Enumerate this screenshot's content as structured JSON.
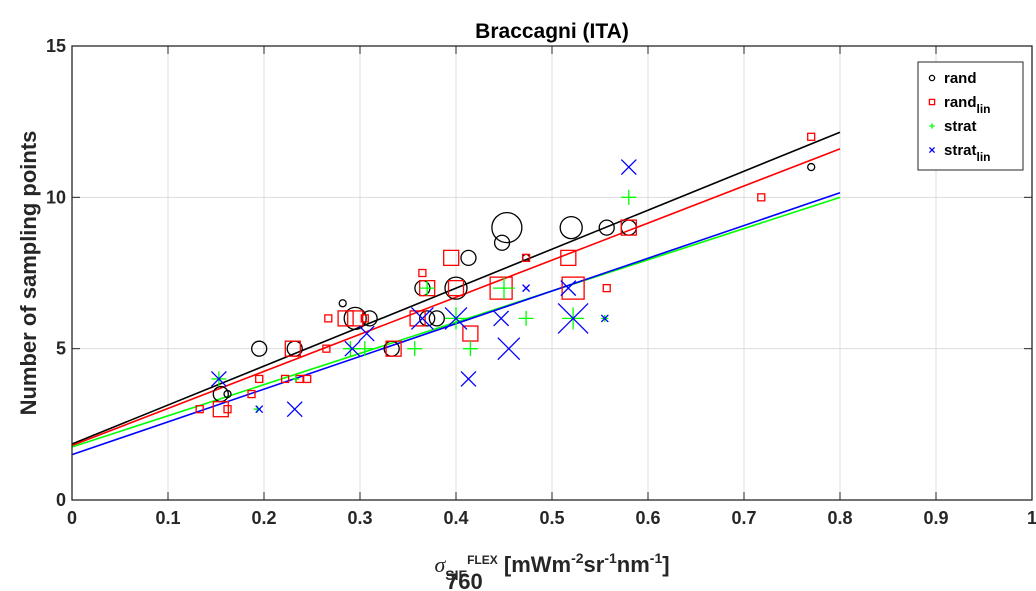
{
  "chart_data": {
    "type": "scatter",
    "title": "Braccagni (ITA)",
    "ylabel": "Number of sampling points",
    "xlabel": {
      "sigma": "σ",
      "sub_base": "SIF",
      "sup_flex": "FLEX",
      "sub_760": "760",
      "units_prefix": " [mWm",
      "exp1": "-2",
      "units_sr": "sr",
      "exp2": "-1",
      "units_nm": "nm",
      "exp3": "-1",
      "units_suffix": "]"
    },
    "xlim": [
      0,
      1
    ],
    "ylim": [
      0,
      15
    ],
    "xticks": [
      0,
      0.1,
      0.2,
      0.3,
      0.4,
      0.5,
      0.6,
      0.7,
      0.8,
      0.9,
      1
    ],
    "xtick_labels": [
      "0",
      "0.1",
      "0.2",
      "0.3",
      "0.4",
      "0.5",
      "0.6",
      "0.7",
      "0.8",
      "0.9",
      "1"
    ],
    "yticks": [
      0,
      5,
      10,
      15
    ],
    "ytick_labels": [
      "0",
      "5",
      "10",
      "15"
    ],
    "grid": true,
    "legend_position": "top-right",
    "series": [
      {
        "name": "rand",
        "name_sub": "",
        "color": "#000000",
        "marker": "circle",
        "points": [
          {
            "x": 0.155,
            "y": 3.5,
            "s": 2
          },
          {
            "x": 0.162,
            "y": 3.5,
            "s": 1
          },
          {
            "x": 0.195,
            "y": 5,
            "s": 2
          },
          {
            "x": 0.232,
            "y": 5,
            "s": 2
          },
          {
            "x": 0.282,
            "y": 6.5,
            "s": 1
          },
          {
            "x": 0.295,
            "y": 6,
            "s": 3
          },
          {
            "x": 0.31,
            "y": 6,
            "s": 2
          },
          {
            "x": 0.333,
            "y": 5,
            "s": 2
          },
          {
            "x": 0.365,
            "y": 7,
            "s": 2
          },
          {
            "x": 0.37,
            "y": 6,
            "s": 2
          },
          {
            "x": 0.38,
            "y": 6,
            "s": 2
          },
          {
            "x": 0.4,
            "y": 7,
            "s": 3
          },
          {
            "x": 0.413,
            "y": 8,
            "s": 2
          },
          {
            "x": 0.448,
            "y": 8.5,
            "s": 2
          },
          {
            "x": 0.453,
            "y": 9,
            "s": 4
          },
          {
            "x": 0.473,
            "y": 8,
            "s": 1
          },
          {
            "x": 0.52,
            "y": 9,
            "s": 3
          },
          {
            "x": 0.557,
            "y": 9,
            "s": 2
          },
          {
            "x": 0.58,
            "y": 9,
            "s": 2
          },
          {
            "x": 0.77,
            "y": 11,
            "s": 1
          }
        ],
        "fit": {
          "x": [
            0,
            0.8
          ],
          "y": [
            1.85,
            12.15
          ]
        }
      },
      {
        "name": "rand",
        "name_sub": "lin",
        "color": "#ff0000",
        "marker": "square",
        "points": [
          {
            "x": 0.133,
            "y": 3,
            "s": 1
          },
          {
            "x": 0.155,
            "y": 3,
            "s": 2
          },
          {
            "x": 0.162,
            "y": 3,
            "s": 1
          },
          {
            "x": 0.187,
            "y": 3.5,
            "s": 1
          },
          {
            "x": 0.195,
            "y": 4,
            "s": 1
          },
          {
            "x": 0.222,
            "y": 4,
            "s": 1
          },
          {
            "x": 0.23,
            "y": 5,
            "s": 2
          },
          {
            "x": 0.237,
            "y": 4,
            "s": 1
          },
          {
            "x": 0.245,
            "y": 4,
            "s": 1
          },
          {
            "x": 0.265,
            "y": 5,
            "s": 1
          },
          {
            "x": 0.267,
            "y": 6,
            "s": 1
          },
          {
            "x": 0.285,
            "y": 6,
            "s": 2
          },
          {
            "x": 0.295,
            "y": 6,
            "s": 2
          },
          {
            "x": 0.305,
            "y": 6,
            "s": 1
          },
          {
            "x": 0.335,
            "y": 5,
            "s": 2
          },
          {
            "x": 0.36,
            "y": 6,
            "s": 2
          },
          {
            "x": 0.365,
            "y": 7.5,
            "s": 1
          },
          {
            "x": 0.37,
            "y": 7,
            "s": 2
          },
          {
            "x": 0.395,
            "y": 8,
            "s": 2
          },
          {
            "x": 0.4,
            "y": 7,
            "s": 2
          },
          {
            "x": 0.415,
            "y": 5.5,
            "s": 2
          },
          {
            "x": 0.447,
            "y": 7,
            "s": 3
          },
          {
            "x": 0.473,
            "y": 8,
            "s": 1
          },
          {
            "x": 0.517,
            "y": 8,
            "s": 2
          },
          {
            "x": 0.522,
            "y": 7,
            "s": 3
          },
          {
            "x": 0.557,
            "y": 7,
            "s": 1
          },
          {
            "x": 0.58,
            "y": 9,
            "s": 2
          },
          {
            "x": 0.718,
            "y": 10,
            "s": 1
          },
          {
            "x": 0.77,
            "y": 12,
            "s": 1
          }
        ],
        "fit": {
          "x": [
            0,
            0.8
          ],
          "y": [
            1.8,
            11.6
          ]
        }
      },
      {
        "name": "strat",
        "name_sub": "",
        "color": "#00ff00",
        "marker": "plus",
        "points": [
          {
            "x": 0.153,
            "y": 4,
            "s": 2
          },
          {
            "x": 0.193,
            "y": 3,
            "s": 1
          },
          {
            "x": 0.233,
            "y": 4,
            "s": 1
          },
          {
            "x": 0.29,
            "y": 5,
            "s": 2
          },
          {
            "x": 0.305,
            "y": 5,
            "s": 2
          },
          {
            "x": 0.357,
            "y": 5,
            "s": 2
          },
          {
            "x": 0.37,
            "y": 7,
            "s": 2
          },
          {
            "x": 0.4,
            "y": 6,
            "s": 3
          },
          {
            "x": 0.415,
            "y": 5,
            "s": 2
          },
          {
            "x": 0.45,
            "y": 7,
            "s": 3
          },
          {
            "x": 0.473,
            "y": 6,
            "s": 2
          },
          {
            "x": 0.522,
            "y": 6,
            "s": 3
          },
          {
            "x": 0.555,
            "y": 6,
            "s": 1
          },
          {
            "x": 0.58,
            "y": 10,
            "s": 2
          }
        ],
        "fit": {
          "x": [
            0,
            0.8
          ],
          "y": [
            1.75,
            10.0
          ]
        }
      },
      {
        "name": "strat",
        "name_sub": "lin",
        "color": "#0000ff",
        "marker": "cross",
        "points": [
          {
            "x": 0.153,
            "y": 4,
            "s": 2
          },
          {
            "x": 0.195,
            "y": 3,
            "s": 1
          },
          {
            "x": 0.232,
            "y": 3,
            "s": 2
          },
          {
            "x": 0.292,
            "y": 5,
            "s": 2
          },
          {
            "x": 0.307,
            "y": 5.5,
            "s": 2
          },
          {
            "x": 0.365,
            "y": 6,
            "s": 3
          },
          {
            "x": 0.4,
            "y": 6,
            "s": 3
          },
          {
            "x": 0.413,
            "y": 4,
            "s": 2
          },
          {
            "x": 0.447,
            "y": 6,
            "s": 2
          },
          {
            "x": 0.455,
            "y": 5,
            "s": 3
          },
          {
            "x": 0.473,
            "y": 7,
            "s": 1
          },
          {
            "x": 0.517,
            "y": 7,
            "s": 2
          },
          {
            "x": 0.522,
            "y": 6,
            "s": 4
          },
          {
            "x": 0.555,
            "y": 6,
            "s": 1
          },
          {
            "x": 0.58,
            "y": 11,
            "s": 2
          }
        ],
        "fit": {
          "x": [
            0,
            0.8
          ],
          "y": [
            1.5,
            10.15
          ]
        }
      }
    ]
  }
}
